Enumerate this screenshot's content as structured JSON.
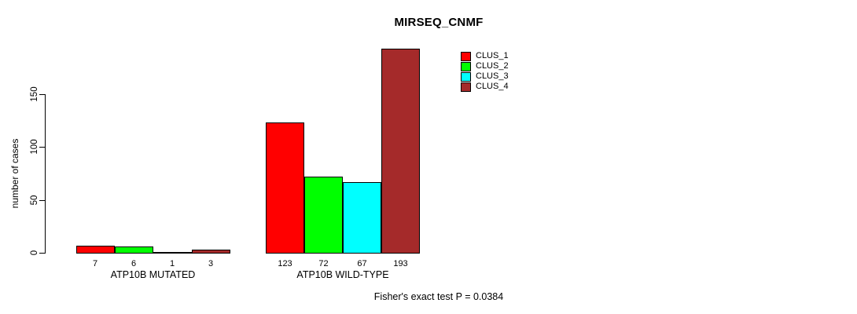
{
  "chart_data": {
    "type": "bar",
    "title": "MIRSEQ_CNMF",
    "ylabel": "number of cases",
    "xlabel": "",
    "yticks": [
      0,
      50,
      100,
      150
    ],
    "ylim": [
      0,
      200
    ],
    "grid": false,
    "legend_position": "top-right",
    "categories": [
      "ATP10B MUTATED",
      "ATP10B WILD-TYPE"
    ],
    "series": [
      {
        "name": "CLUS_1",
        "color": "#ff0000",
        "values": [
          7,
          123
        ]
      },
      {
        "name": "CLUS_2",
        "color": "#00ff00",
        "values": [
          6,
          72
        ]
      },
      {
        "name": "CLUS_3",
        "color": "#00ffff",
        "values": [
          1,
          67
        ]
      },
      {
        "name": "CLUS_4",
        "color": "#a52a2a",
        "values": [
          3,
          193
        ]
      }
    ],
    "bar_value_labels": [
      [
        "7",
        "6",
        "1",
        "3"
      ],
      [
        "123",
        "72",
        "67",
        "193"
      ]
    ],
    "annotation": "Fisher's exact test P = 0.0384",
    "background_color": "#ffffff",
    "bar_border_color": "#000000",
    "text_color": "#000000"
  }
}
